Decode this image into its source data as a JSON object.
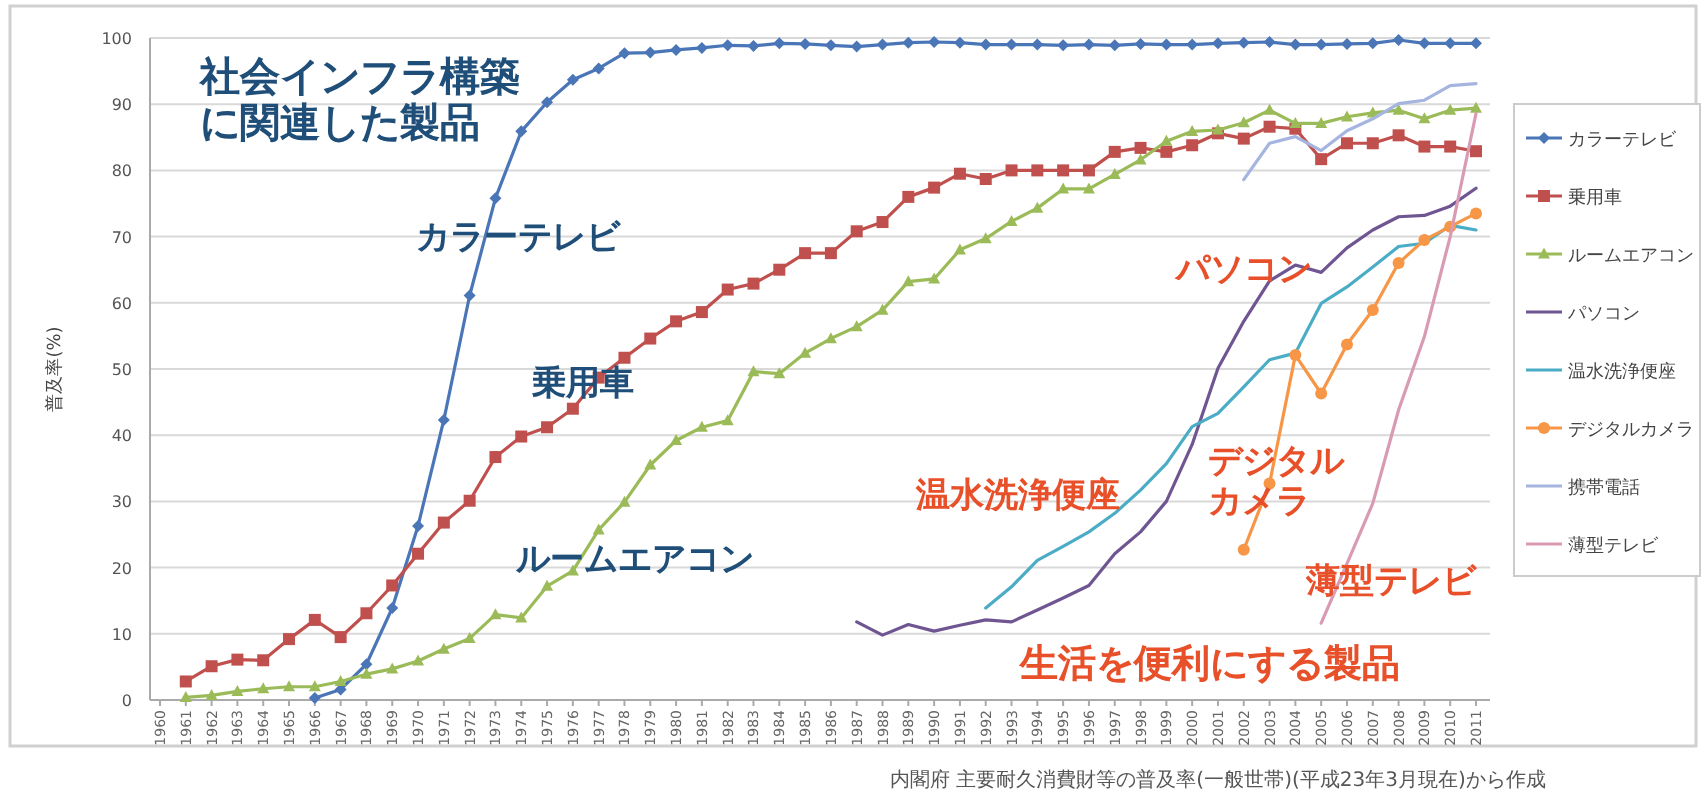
{
  "chart_data": {
    "type": "line",
    "ylabel": "普及率(%)",
    "categories": [
      "1960",
      "1961",
      "1962",
      "1963",
      "1964",
      "1965",
      "1966",
      "1967",
      "1968",
      "1969",
      "1970",
      "1971",
      "1972",
      "1973",
      "1974",
      "1975",
      "1976",
      "1977",
      "1978",
      "1979",
      "1980",
      "1981",
      "1982",
      "1983",
      "1984",
      "1985",
      "1986",
      "1987",
      "1988",
      "1989",
      "1990",
      "1991",
      "1992",
      "1993",
      "1994",
      "1995",
      "1996",
      "1997",
      "1998",
      "1999",
      "2000",
      "2001",
      "2002",
      "2003",
      "2004",
      "2005",
      "2006",
      "2007",
      "2008",
      "2009",
      "2010",
      "2011"
    ],
    "ylim": [
      0,
      100
    ],
    "yticks": [
      0,
      10,
      20,
      30,
      40,
      50,
      60,
      70,
      80,
      90,
      100
    ],
    "grid": "y",
    "legend": "right",
    "series": [
      {
        "name": "カラーテレビ",
        "color": "#4a76b8",
        "marker": "diamond",
        "values": [
          null,
          null,
          null,
          null,
          null,
          null,
          0.3,
          1.6,
          5.4,
          13.9,
          26.3,
          42.3,
          61.1,
          75.8,
          85.9,
          90.3,
          93.7,
          95.4,
          97.7,
          97.8,
          98.2,
          98.5,
          98.9,
          98.8,
          99.2,
          99.1,
          98.9,
          98.7,
          99.0,
          99.3,
          99.4,
          99.3,
          99.0,
          99.0,
          99.0,
          98.9,
          99.0,
          98.9,
          99.1,
          99.0,
          99.0,
          99.2,
          99.3,
          99.4,
          99.0,
          99.0,
          99.1,
          99.2,
          99.7,
          99.2,
          99.2,
          99.2
        ]
      },
      {
        "name": "乗用車",
        "color": "#c0504d",
        "marker": "square",
        "values": [
          null,
          2.8,
          5.1,
          6.1,
          6.0,
          9.2,
          12.1,
          9.5,
          13.1,
          17.3,
          22.1,
          26.8,
          30.1,
          36.7,
          39.8,
          41.2,
          44.0,
          48.7,
          51.7,
          54.6,
          57.2,
          58.6,
          62.0,
          62.9,
          65.0,
          67.5,
          67.5,
          70.8,
          72.2,
          76.0,
          77.4,
          79.5,
          78.7,
          80.0,
          80.0,
          80.0,
          80.0,
          82.8,
          83.4,
          82.8,
          83.8,
          85.6,
          84.8,
          86.6,
          86.3,
          81.7,
          84.1,
          84.1,
          85.3,
          83.6,
          83.6,
          82.9
        ]
      },
      {
        "name": "ルームエアコン",
        "color": "#9bbb59",
        "marker": "triangle",
        "values": [
          null,
          0.4,
          0.7,
          1.3,
          1.7,
          2.0,
          2.0,
          2.8,
          3.9,
          4.7,
          5.9,
          7.7,
          9.3,
          12.9,
          12.4,
          17.2,
          19.5,
          25.7,
          29.9,
          35.5,
          39.2,
          41.2,
          42.2,
          49.6,
          49.3,
          52.4,
          54.6,
          56.4,
          58.9,
          63.2,
          63.6,
          68.0,
          69.7,
          72.3,
          74.3,
          77.2,
          77.2,
          79.4,
          81.6,
          84.4,
          85.9,
          86.1,
          87.2,
          89.1,
          87.1,
          87.1,
          88.1,
          88.7,
          89.1,
          87.8,
          89.1,
          89.4
        ]
      },
      {
        "name": "パソコン",
        "color": "#6f5591",
        "marker": "none",
        "values": [
          null,
          null,
          null,
          null,
          null,
          null,
          null,
          null,
          null,
          null,
          null,
          null,
          null,
          null,
          null,
          null,
          null,
          null,
          null,
          null,
          null,
          null,
          null,
          null,
          null,
          null,
          null,
          11.8,
          9.8,
          11.4,
          10.4,
          11.3,
          12.1,
          11.8,
          13.6,
          15.4,
          17.3,
          22.1,
          25.4,
          30.0,
          38.6,
          50.1,
          57.2,
          63.3,
          65.7,
          64.6,
          68.3,
          71.0,
          73.0,
          73.2,
          74.6,
          77.3
        ]
      },
      {
        "name": "温水洗浄便座",
        "color": "#4bacc6",
        "marker": "none",
        "values": [
          null,
          null,
          null,
          null,
          null,
          null,
          null,
          null,
          null,
          null,
          null,
          null,
          null,
          null,
          null,
          null,
          null,
          null,
          null,
          null,
          null,
          null,
          null,
          null,
          null,
          null,
          null,
          null,
          null,
          null,
          null,
          null,
          13.9,
          17.1,
          21.1,
          23.2,
          25.4,
          28.2,
          31.7,
          35.7,
          41.3,
          43.3,
          47.3,
          51.4,
          52.4,
          59.9,
          62.4,
          65.4,
          68.5,
          69.0,
          71.7,
          71.0
        ]
      },
      {
        "name": "デジタルカメラ",
        "color": "#f79646",
        "marker": "circle",
        "values": [
          null,
          null,
          null,
          null,
          null,
          null,
          null,
          null,
          null,
          null,
          null,
          null,
          null,
          null,
          null,
          null,
          null,
          null,
          null,
          null,
          null,
          null,
          null,
          null,
          null,
          null,
          null,
          null,
          null,
          null,
          null,
          null,
          null,
          null,
          null,
          null,
          null,
          null,
          null,
          null,
          null,
          null,
          22.7,
          32.7,
          52.1,
          46.3,
          53.7,
          58.9,
          66.0,
          69.5,
          71.5,
          73.5
        ]
      },
      {
        "name": "携帯電話",
        "color": "#a5b5e0",
        "marker": "none",
        "values": [
          null,
          null,
          null,
          null,
          null,
          null,
          null,
          null,
          null,
          null,
          null,
          null,
          null,
          null,
          null,
          null,
          null,
          null,
          null,
          null,
          null,
          null,
          null,
          null,
          null,
          null,
          null,
          null,
          null,
          null,
          null,
          null,
          null,
          null,
          null,
          null,
          null,
          null,
          null,
          null,
          null,
          null,
          78.6,
          84.1,
          85.1,
          83.0,
          86.0,
          87.8,
          90.1,
          90.6,
          92.8,
          93.1
        ]
      },
      {
        "name": "薄型テレビ",
        "color": "#d99ab4",
        "marker": "none",
        "values": [
          null,
          null,
          null,
          null,
          null,
          null,
          null,
          null,
          null,
          null,
          null,
          null,
          null,
          null,
          null,
          null,
          null,
          null,
          null,
          null,
          null,
          null,
          null,
          null,
          null,
          null,
          null,
          null,
          null,
          null,
          null,
          null,
          null,
          null,
          null,
          null,
          null,
          null,
          null,
          null,
          null,
          null,
          null,
          null,
          null,
          11.6,
          20.6,
          29.7,
          43.8,
          54.9,
          70.0,
          88.6
        ]
      }
    ],
    "annotations": [
      "社会インフラ構築に関連した製品",
      "カラーテレビ",
      "乗用車",
      "ルームエアコン",
      "パソコン",
      "温水洗浄便座",
      "デジタルカメラ",
      "薄型テレビ",
      "生活を便利にする製品",
      "内閣府 主要耐久消費財等の普及率(一般世帯)(平成23年3月現在)から作成"
    ]
  }
}
